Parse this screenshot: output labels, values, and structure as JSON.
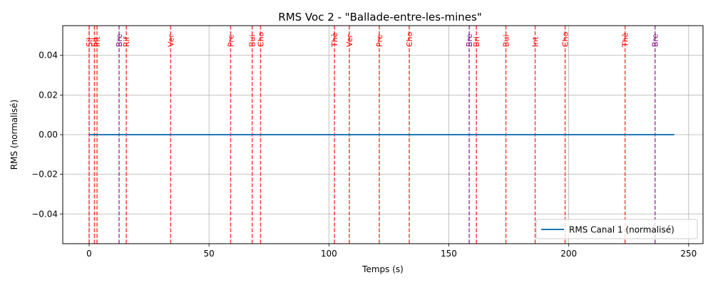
{
  "chart_data": {
    "type": "line",
    "title": "RMS Voc 2 - \"Ballade-entre-les-mines\"",
    "xlabel": "Temps (s)",
    "ylabel": "RMS (normalisé)",
    "xlim": [
      -11,
      256
    ],
    "ylim": [
      -0.055,
      0.055
    ],
    "xticks": [
      0,
      50,
      100,
      150,
      200,
      250
    ],
    "yticks": [
      -0.04,
      -0.02,
      0.0,
      0.02,
      0.04
    ],
    "ytick_labels": [
      "−0.04",
      "−0.02",
      "0.00",
      "0.02",
      "0.04"
    ],
    "grid": true,
    "legend": {
      "placement": "lower-right",
      "entries": [
        "RMS Canal 1 (normalisé)"
      ]
    },
    "series": [
      {
        "name": "RMS Canal 1 (normalisé)",
        "color": "#1f77b4",
        "x": [
          0,
          244
        ],
        "y": [
          0,
          0
        ]
      }
    ],
    "markers": [
      {
        "x": 0,
        "label": "Sil",
        "color": "#ff0000"
      },
      {
        "x": 2.2,
        "label": "Sil",
        "color": "#ff0000"
      },
      {
        "x": 3.3,
        "label": "Int",
        "color": "#ff0000"
      },
      {
        "x": 12.5,
        "label": "Bre",
        "color": "#800080"
      },
      {
        "x": 15.5,
        "label": "Rif",
        "color": "#ff0000"
      },
      {
        "x": 34,
        "label": "Ver",
        "color": "#ff0000"
      },
      {
        "x": 59,
        "label": "Pre",
        "color": "#ff0000"
      },
      {
        "x": 68,
        "label": "Bui",
        "color": "#ff0000"
      },
      {
        "x": 71.5,
        "label": "Cho",
        "color": "#ff0000"
      },
      {
        "x": 102.3,
        "label": "Thè",
        "color": "#ff0000"
      },
      {
        "x": 108.5,
        "label": "Ver",
        "color": "#ff0000"
      },
      {
        "x": 121,
        "label": "Pre",
        "color": "#ff0000"
      },
      {
        "x": 133.5,
        "label": "Cho",
        "color": "#ff0000"
      },
      {
        "x": 158.5,
        "label": "Bre",
        "color": "#800080"
      },
      {
        "x": 161.5,
        "label": "Bri",
        "color": "#ff0000"
      },
      {
        "x": 173.8,
        "label": "Bui",
        "color": "#ff0000"
      },
      {
        "x": 186,
        "label": "Int",
        "color": "#ff0000"
      },
      {
        "x": 198.5,
        "label": "Cho",
        "color": "#ff0000"
      },
      {
        "x": 223.5,
        "label": "Thè",
        "color": "#ff0000"
      },
      {
        "x": 236,
        "label": "Bre",
        "color": "#800080"
      }
    ]
  }
}
